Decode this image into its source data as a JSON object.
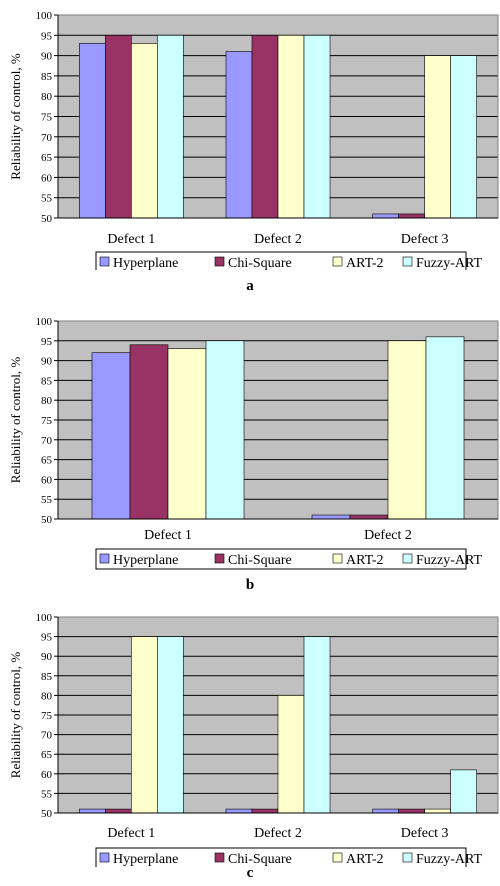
{
  "chart_data": [
    {
      "type": "bar",
      "panel_label": "a",
      "ylabel": "Reliability of control, %",
      "ylim": [
        50,
        100
      ],
      "yticks": [
        "50",
        "55",
        "60",
        "65",
        "70",
        "75",
        "80",
        "85",
        "90",
        "95",
        "100"
      ],
      "categories": [
        "Defect 1",
        "Defect 2",
        "Defect 3"
      ],
      "series": [
        {
          "name": "Hyperplane",
          "color": "#9999ff",
          "values": [
            93,
            91,
            51
          ]
        },
        {
          "name": "Chi-Square",
          "color": "#993366",
          "values": [
            95,
            95,
            51
          ]
        },
        {
          "name": "ART-2",
          "color": "#ffffcc",
          "values": [
            93,
            95,
            90
          ]
        },
        {
          "name": "Fuzzy-ART",
          "color": "#ccffff",
          "values": [
            95,
            95,
            90
          ]
        }
      ],
      "grid": true,
      "legend": "bottom"
    },
    {
      "type": "bar",
      "panel_label": "b",
      "ylabel": "Reliability of control, %",
      "ylim": [
        50,
        100
      ],
      "yticks": [
        "50",
        "55",
        "60",
        "65",
        "70",
        "75",
        "80",
        "85",
        "90",
        "95",
        "100"
      ],
      "categories": [
        "Defect 1",
        "Defect 2"
      ],
      "series": [
        {
          "name": "Hyperplane",
          "color": "#9999ff",
          "values": [
            92,
            51
          ]
        },
        {
          "name": "Chi-Square",
          "color": "#993366",
          "values": [
            94,
            51
          ]
        },
        {
          "name": "ART-2",
          "color": "#ffffcc",
          "values": [
            93,
            95
          ]
        },
        {
          "name": "Fuzzy-ART",
          "color": "#ccffff",
          "values": [
            95,
            96
          ]
        }
      ],
      "grid": true,
      "legend": "bottom"
    },
    {
      "type": "bar",
      "panel_label": "c",
      "ylabel": "Reliability of control, %",
      "ylim": [
        50,
        100
      ],
      "yticks": [
        "50",
        "55",
        "60",
        "65",
        "70",
        "75",
        "80",
        "85",
        "90",
        "95",
        "100"
      ],
      "categories": [
        "Defect 1",
        "Defect 2",
        "Defect 3"
      ],
      "series": [
        {
          "name": "Hyperplane",
          "color": "#9999ff",
          "values": [
            51,
            51,
            51
          ]
        },
        {
          "name": "Chi-Square",
          "color": "#993366",
          "values": [
            51,
            51,
            51
          ]
        },
        {
          "name": "ART-2",
          "color": "#ffffcc",
          "values": [
            95,
            80,
            51
          ]
        },
        {
          "name": "Fuzzy-ART",
          "color": "#ccffff",
          "values": [
            95,
            95,
            61
          ]
        }
      ],
      "grid": true,
      "legend": "bottom"
    }
  ]
}
